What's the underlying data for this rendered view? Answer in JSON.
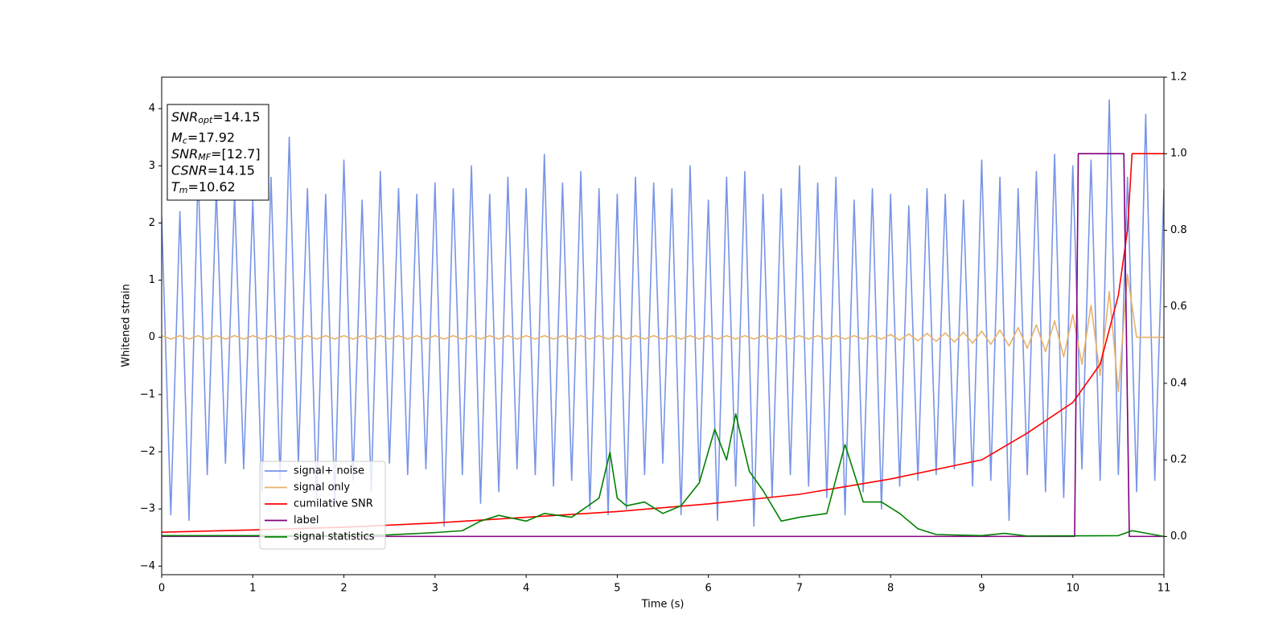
{
  "chart_data": {
    "type": "line",
    "xlabel": "Time (s)",
    "ylabel": "Whitened strain",
    "xlim": [
      0,
      11
    ],
    "xticks": [
      0,
      1,
      2,
      3,
      4,
      5,
      6,
      7,
      8,
      9,
      10,
      11
    ],
    "ylim": [
      -4.15,
      4.55
    ],
    "yticks": [
      {
        "value": -4,
        "label": "−4"
      },
      {
        "value": -3,
        "label": "−3"
      },
      {
        "value": -2,
        "label": "−2"
      },
      {
        "value": -1,
        "label": "−1"
      },
      0,
      1,
      2,
      3,
      4
    ],
    "y2lim": [
      -0.1,
      1.2
    ],
    "y2ticks": [
      {
        "value": 0,
        "label": "0.0"
      },
      {
        "value": 0.2,
        "label": "0.2"
      },
      {
        "value": 0.4,
        "label": "0.4"
      },
      {
        "value": 0.6,
        "label": "0.6"
      },
      {
        "value": 0.8,
        "label": "0.8"
      },
      {
        "value": 1.0,
        "label": "1.0"
      },
      {
        "value": 1.2,
        "label": "1.2"
      }
    ],
    "legend_loc": "lower left",
    "annotations": [
      {
        "main": "SNR",
        "sub": "opt",
        "text": "=14.15"
      },
      {
        "main": "M",
        "sub": "c",
        "text": "=17.92"
      },
      {
        "main": "SNR",
        "sub": "MF",
        "text": "=[12.7]"
      },
      {
        "main": "CSNR",
        "sub": null,
        "text": "=14.15"
      },
      {
        "main": "T",
        "sub": "m",
        "text": "=10.62"
      }
    ],
    "series": [
      {
        "name": "signal+ noise",
        "color": "#7894e6",
        "x": [
          0,
          0.1,
          0.2,
          0.3,
          0.4,
          0.5,
          0.6,
          0.7,
          0.8,
          0.9,
          1,
          1.1,
          1.2,
          1.3,
          1.4,
          1.5,
          1.6,
          1.7,
          1.8,
          1.9,
          2,
          2.1,
          2.2,
          2.3,
          2.4,
          2.5,
          2.6,
          2.7,
          2.8,
          2.9,
          3,
          3.1,
          3.2,
          3.3,
          3.4,
          3.5,
          3.6,
          3.7,
          3.8,
          3.9,
          4,
          4.1,
          4.2,
          4.3,
          4.4,
          4.5,
          4.6,
          4.7,
          4.8,
          4.9,
          5,
          5.1,
          5.2,
          5.3,
          5.4,
          5.5,
          5.6,
          5.7,
          5.8,
          5.9,
          6,
          6.1,
          6.2,
          6.3,
          6.4,
          6.5,
          6.6,
          6.7,
          6.8,
          6.9,
          7,
          7.1,
          7.2,
          7.3,
          7.4,
          7.5,
          7.6,
          7.7,
          7.8,
          7.9,
          8,
          8.1,
          8.2,
          8.3,
          8.4,
          8.5,
          8.6,
          8.7,
          8.8,
          8.9,
          9,
          9.1,
          9.2,
          9.3,
          9.4,
          9.5,
          9.6,
          9.7,
          9.8,
          9.9,
          10,
          10.1,
          10.2,
          10.3,
          10.4,
          10.5,
          10.6,
          10.7,
          10.8,
          10.9,
          11
        ],
        "values": [
          2.1,
          -3.1,
          2.2,
          -3.2,
          2.9,
          -2.4,
          2.6,
          -2.2,
          2.5,
          -2.3,
          2.4,
          -2.7,
          2.8,
          -2.5,
          3.5,
          -2.2,
          2.6,
          -2.8,
          2.5,
          -2.9,
          3.1,
          -2.5,
          2.4,
          -2.7,
          2.9,
          -2.2,
          2.6,
          -2.4,
          2.5,
          -2.3,
          2.7,
          -3.3,
          2.6,
          -2.4,
          3.0,
          -2.9,
          2.5,
          -2.7,
          2.8,
          -2.3,
          2.6,
          -2.4,
          3.2,
          -2.6,
          2.7,
          -2.5,
          2.9,
          -3.0,
          2.6,
          -3.1,
          2.5,
          -3.0,
          2.8,
          -2.4,
          2.7,
          -2.2,
          2.6,
          -3.1,
          3.0,
          -2.5,
          2.4,
          -3.2,
          2.8,
          -2.6,
          2.9,
          -3.3,
          2.5,
          -2.8,
          2.6,
          -2.4,
          3.0,
          -2.6,
          2.7,
          -2.8,
          2.8,
          -3.1,
          2.4,
          -2.7,
          2.6,
          -3.0,
          2.5,
          -2.6,
          2.3,
          -2.5,
          2.6,
          -2.4,
          2.5,
          -2.3,
          2.4,
          -2.6,
          3.1,
          -2.5,
          2.8,
          -3.2,
          2.6,
          -2.4,
          2.9,
          -2.7,
          3.2,
          -2.8,
          3.0,
          -2.3,
          3.1,
          -2.5,
          4.15,
          -2.4,
          2.8,
          -2.7,
          3.9,
          -2.5,
          2.6
        ]
      },
      {
        "name": "signal only",
        "color": "#e8b26a",
        "x": [
          0,
          0.1,
          0.2,
          0.3,
          0.4,
          0.5,
          0.6,
          0.7,
          0.8,
          0.9,
          1,
          1.1,
          1.2,
          1.3,
          1.4,
          1.5,
          1.6,
          1.7,
          1.8,
          1.9,
          2,
          2.1,
          2.2,
          2.3,
          2.4,
          2.5,
          2.6,
          2.7,
          2.8,
          2.9,
          3,
          3.1,
          3.2,
          3.3,
          3.4,
          3.5,
          3.6,
          3.7,
          3.8,
          3.9,
          4,
          4.1,
          4.2,
          4.3,
          4.4,
          4.5,
          4.6,
          4.7,
          4.8,
          4.9,
          5,
          5.1,
          5.2,
          5.3,
          5.4,
          5.5,
          5.6,
          5.7,
          5.8,
          5.9,
          6,
          6.1,
          6.2,
          6.3,
          6.4,
          6.5,
          6.6,
          6.7,
          6.8,
          6.9,
          7,
          7.1,
          7.2,
          7.3,
          7.4,
          7.5,
          7.6,
          7.7,
          7.8,
          7.9,
          8,
          8.1,
          8.2,
          8.3,
          8.4,
          8.5,
          8.6,
          8.7,
          8.8,
          8.9,
          9,
          9.1,
          9.2,
          9.3,
          9.4,
          9.5,
          9.6,
          9.7,
          9.8,
          9.9,
          10,
          10.1,
          10.2,
          10.3,
          10.4,
          10.5,
          10.6,
          10.7,
          10.8,
          10.9,
          11
        ],
        "values": [
          0.03,
          -0.03,
          0.03,
          -0.03,
          0.03,
          -0.03,
          0.03,
          -0.03,
          0.03,
          -0.03,
          0.03,
          -0.03,
          0.03,
          -0.03,
          0.03,
          -0.03,
          0.03,
          -0.03,
          0.03,
          -0.03,
          0.03,
          -0.03,
          0.03,
          -0.03,
          0.03,
          -0.03,
          0.03,
          -0.03,
          0.03,
          -0.03,
          0.03,
          -0.03,
          0.03,
          -0.03,
          0.03,
          -0.03,
          0.03,
          -0.03,
          0.03,
          -0.03,
          0.03,
          -0.03,
          0.03,
          -0.03,
          0.03,
          -0.03,
          0.03,
          -0.03,
          0.03,
          -0.03,
          0.03,
          -0.03,
          0.03,
          -0.03,
          0.03,
          -0.03,
          0.03,
          -0.03,
          0.03,
          -0.03,
          0.03,
          -0.03,
          0.03,
          -0.03,
          0.03,
          -0.03,
          0.03,
          -0.03,
          0.03,
          -0.03,
          0.03,
          -0.03,
          0.03,
          -0.03,
          0.03,
          -0.03,
          0.03,
          -0.03,
          0.03,
          -0.03,
          0.05,
          -0.05,
          0.06,
          -0.06,
          0.07,
          -0.07,
          0.08,
          -0.08,
          0.09,
          -0.1,
          0.11,
          -0.12,
          0.13,
          -0.15,
          0.17,
          -0.19,
          0.22,
          -0.25,
          0.29,
          -0.34,
          0.4,
          -0.47,
          0.56,
          -0.67,
          0.8,
          -0.95,
          1.1,
          0,
          0,
          0,
          0
        ]
      },
      {
        "name": "cumilative SNR",
        "color": "#ff0000",
        "axis": "y2",
        "x": [
          0,
          1,
          2,
          3,
          4,
          5,
          6,
          7,
          8,
          9,
          9.5,
          10,
          10.3,
          10.5,
          10.6,
          10.65,
          11
        ],
        "values": [
          0.011,
          0.017,
          0.024,
          0.035,
          0.05,
          0.065,
          0.085,
          0.11,
          0.15,
          0.2,
          0.27,
          0.35,
          0.45,
          0.63,
          0.8,
          1.0,
          1.0
        ]
      },
      {
        "name": "label",
        "color": "#800080",
        "axis": "y2",
        "x": [
          0,
          10.02,
          10.06,
          10.56,
          10.62,
          11
        ],
        "values": [
          0,
          0,
          1,
          1,
          0,
          0
        ]
      },
      {
        "name": "signal statistics",
        "color": "#008000",
        "axis": "y2",
        "x": [
          0,
          1,
          2,
          2.5,
          3,
          3.3,
          3.5,
          3.7,
          4,
          4.2,
          4.5,
          4.8,
          4.92,
          5,
          5.1,
          5.3,
          5.5,
          5.7,
          5.9,
          6.07,
          6.2,
          6.3,
          6.45,
          6.6,
          6.8,
          7,
          7.3,
          7.5,
          7.7,
          7.9,
          8.1,
          8.3,
          8.5,
          9,
          9.25,
          9.5,
          10.5,
          10.65,
          11
        ],
        "values": [
          0.002,
          0.002,
          0.002,
          0.004,
          0.01,
          0.015,
          0.04,
          0.055,
          0.04,
          0.06,
          0.05,
          0.1,
          0.22,
          0.1,
          0.08,
          0.09,
          0.06,
          0.08,
          0.14,
          0.28,
          0.2,
          0.32,
          0.17,
          0.12,
          0.04,
          0.05,
          0.06,
          0.24,
          0.09,
          0.09,
          0.06,
          0.02,
          0.005,
          0.002,
          0.008,
          0.001,
          0.002,
          0.015,
          0
        ]
      }
    ]
  }
}
